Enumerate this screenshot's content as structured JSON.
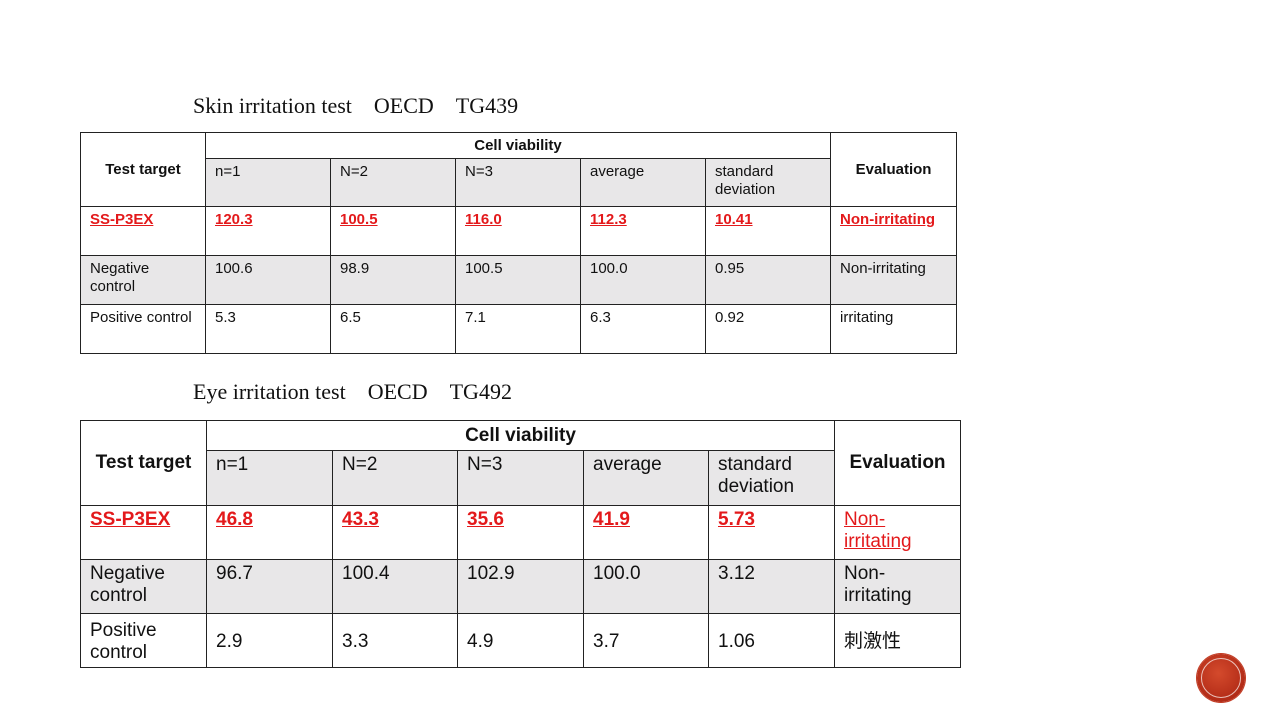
{
  "skin": {
    "title": "Skin irritation test　OECD　TG439",
    "header_test_target": "Test target",
    "header_cell_viability": "Cell viability",
    "header_evaluation": "Evaluation",
    "sub_headers": [
      "n=1",
      "N=2",
      "N=3",
      "average",
      "standard deviation"
    ],
    "rows": [
      {
        "target": "SS-P3EX",
        "values": [
          "120.3",
          "100.5",
          "116.0",
          "112.3",
          "10.41"
        ],
        "evaluation": "Non-irritating"
      },
      {
        "target": "Negative control",
        "values": [
          "100.6",
          "98.9",
          "100.5",
          "100.0",
          "0.95"
        ],
        "evaluation": "Non-irritating"
      },
      {
        "target": "Positive control",
        "values": [
          "5.3",
          "6.5",
          "7.1",
          "6.3",
          "0.92"
        ],
        "evaluation": "irritating"
      }
    ]
  },
  "eye": {
    "title": "Eye irritation test　OECD　TG492",
    "header_test_target": "Test target",
    "header_cell_viability": "Cell viability",
    "header_evaluation": "Evaluation",
    "sub_headers": [
      "n=1",
      "N=2",
      "N=3",
      "average",
      "standard deviation"
    ],
    "rows": [
      {
        "target": "SS-P3EX",
        "values": [
          "46.8",
          "43.3",
          "35.6",
          "41.9",
          "5.73"
        ],
        "evaluation": "Non-irritating"
      },
      {
        "target": "Negative control",
        "values": [
          "96.7",
          "100.4",
          "102.9",
          "100.0",
          "3.12"
        ],
        "evaluation": "Non-irritating"
      },
      {
        "target": "Positive control",
        "values": [
          "2.9",
          "3.3",
          "4.9",
          "3.7",
          "1.06"
        ],
        "evaluation": "刺激性"
      }
    ]
  },
  "colors": {
    "highlight": "#e3191b",
    "row_gray": "#e8e7e8",
    "logo": "#b22b17"
  }
}
